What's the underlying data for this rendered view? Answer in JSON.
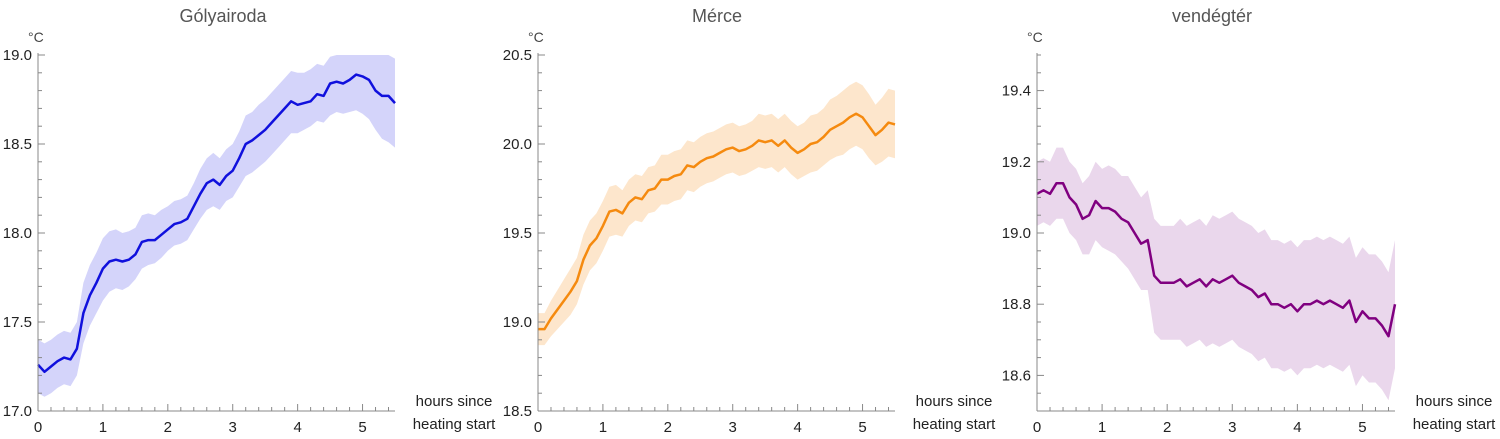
{
  "chart_data": [
    {
      "type": "line",
      "title": "Gólyairoda",
      "ylabel": "°C",
      "xlabel_lines": [
        "hours since",
        "heating start"
      ],
      "xlim": [
        0,
        5.5
      ],
      "ylim": [
        17.0,
        19.0
      ],
      "xticks": [
        0,
        1,
        2,
        3,
        4,
        5
      ],
      "yticks": [
        "17.0",
        "17.5",
        "18.0",
        "18.5",
        "19.0"
      ],
      "color": "#1010dd",
      "band_color": "#d4d4fa",
      "series": [
        {
          "x": [
            0,
            0.1,
            0.2,
            0.3,
            0.4,
            0.5,
            0.6,
            0.7,
            0.8,
            0.9,
            1.0,
            1.1,
            1.2,
            1.3,
            1.4,
            1.5,
            1.6,
            1.7,
            1.8,
            1.9,
            2.0,
            2.1,
            2.2,
            2.3,
            2.4,
            2.5,
            2.6,
            2.7,
            2.8,
            2.9,
            3.0,
            3.1,
            3.2,
            3.3,
            3.4,
            3.5,
            3.6,
            3.7,
            3.8,
            3.9,
            4.0,
            4.1,
            4.2,
            4.3,
            4.4,
            4.5,
            4.6,
            4.7,
            4.8,
            4.9,
            5.0,
            5.1,
            5.2,
            5.3,
            5.4,
            5.5
          ],
          "y": [
            17.26,
            17.22,
            17.25,
            17.28,
            17.3,
            17.29,
            17.35,
            17.55,
            17.65,
            17.72,
            17.8,
            17.84,
            17.85,
            17.84,
            17.85,
            17.88,
            17.95,
            17.96,
            17.96,
            17.99,
            18.02,
            18.05,
            18.06,
            18.08,
            18.15,
            18.22,
            18.28,
            18.3,
            18.27,
            18.32,
            18.35,
            18.42,
            18.5,
            18.52,
            18.55,
            18.58,
            18.62,
            18.66,
            18.7,
            18.74,
            18.72,
            18.73,
            18.74,
            18.78,
            18.77,
            18.84,
            18.85,
            18.84,
            18.86,
            18.89,
            18.88,
            18.86,
            18.8,
            18.77,
            18.77,
            18.73
          ],
          "lower": [
            17.1,
            17.08,
            17.1,
            17.13,
            17.15,
            17.14,
            17.2,
            17.38,
            17.48,
            17.55,
            17.62,
            17.67,
            17.69,
            17.68,
            17.7,
            17.74,
            17.8,
            17.82,
            17.83,
            17.86,
            17.9,
            17.93,
            17.94,
            17.96,
            18.02,
            18.08,
            18.13,
            18.15,
            18.13,
            18.18,
            18.2,
            18.26,
            18.32,
            18.34,
            18.37,
            18.4,
            18.44,
            18.48,
            18.52,
            18.56,
            18.56,
            18.58,
            18.6,
            18.63,
            18.62,
            18.66,
            18.68,
            18.67,
            18.68,
            18.69,
            18.67,
            18.64,
            18.58,
            18.53,
            18.51,
            18.48
          ],
          "upper": [
            17.4,
            17.38,
            17.4,
            17.43,
            17.45,
            17.44,
            17.5,
            17.72,
            17.82,
            17.89,
            17.97,
            18.01,
            18.02,
            18.0,
            18.01,
            18.03,
            18.1,
            18.11,
            18.1,
            18.13,
            18.15,
            18.18,
            18.19,
            18.21,
            18.28,
            18.36,
            18.42,
            18.45,
            18.42,
            18.47,
            18.5,
            18.57,
            18.66,
            18.68,
            18.72,
            18.75,
            18.79,
            18.83,
            18.87,
            18.91,
            18.9,
            18.9,
            18.92,
            18.95,
            18.94,
            18.99,
            19.0,
            19.0,
            19.0,
            19.0,
            19.0,
            19.0,
            19.0,
            19.0,
            19.0,
            18.98
          ]
        }
      ]
    },
    {
      "type": "line",
      "title": "Mérce",
      "ylabel": "°C",
      "xlabel_lines": [
        "hours since",
        "heating start"
      ],
      "xlim": [
        0,
        5.5
      ],
      "ylim": [
        18.5,
        20.5
      ],
      "xticks": [
        0,
        1,
        2,
        3,
        4,
        5
      ],
      "yticks": [
        "18.5",
        "19.0",
        "19.5",
        "20.0",
        "20.5"
      ],
      "color": "#f58a0f",
      "band_color": "#fde6cc",
      "series": [
        {
          "x": [
            0,
            0.1,
            0.2,
            0.3,
            0.4,
            0.5,
            0.6,
            0.7,
            0.8,
            0.9,
            1.0,
            1.1,
            1.2,
            1.3,
            1.4,
            1.5,
            1.6,
            1.7,
            1.8,
            1.9,
            2.0,
            2.1,
            2.2,
            2.3,
            2.4,
            2.5,
            2.6,
            2.7,
            2.8,
            2.9,
            3.0,
            3.1,
            3.2,
            3.3,
            3.4,
            3.5,
            3.6,
            3.7,
            3.8,
            3.9,
            4.0,
            4.1,
            4.2,
            4.3,
            4.4,
            4.5,
            4.6,
            4.7,
            4.8,
            4.9,
            5.0,
            5.1,
            5.2,
            5.3,
            5.4,
            5.5
          ],
          "y": [
            18.96,
            18.96,
            19.02,
            19.07,
            19.12,
            19.17,
            19.23,
            19.35,
            19.43,
            19.47,
            19.54,
            19.62,
            19.63,
            19.61,
            19.67,
            19.7,
            19.69,
            19.74,
            19.75,
            19.8,
            19.8,
            19.82,
            19.83,
            19.88,
            19.87,
            19.9,
            19.92,
            19.93,
            19.95,
            19.97,
            19.98,
            19.96,
            19.97,
            19.99,
            20.02,
            20.01,
            20.02,
            19.99,
            20.02,
            19.98,
            19.95,
            19.97,
            20.0,
            20.01,
            20.04,
            20.08,
            20.1,
            20.12,
            20.15,
            20.17,
            20.15,
            20.1,
            20.05,
            20.08,
            20.12,
            20.11
          ],
          "lower": [
            18.87,
            18.87,
            18.92,
            18.96,
            19.0,
            19.04,
            19.1,
            19.21,
            19.29,
            19.33,
            19.4,
            19.48,
            19.49,
            19.48,
            19.54,
            19.57,
            19.56,
            19.61,
            19.62,
            19.66,
            19.66,
            19.68,
            19.69,
            19.74,
            19.73,
            19.76,
            19.78,
            19.79,
            19.81,
            19.83,
            19.84,
            19.82,
            19.83,
            19.85,
            19.87,
            19.86,
            19.87,
            19.84,
            19.87,
            19.83,
            19.8,
            19.82,
            19.84,
            19.85,
            19.88,
            19.91,
            19.93,
            19.94,
            19.97,
            19.99,
            19.97,
            19.92,
            19.88,
            19.9,
            19.93,
            19.92
          ],
          "upper": [
            19.05,
            19.05,
            19.12,
            19.18,
            19.24,
            19.3,
            19.36,
            19.49,
            19.57,
            19.61,
            19.68,
            19.76,
            19.77,
            19.74,
            19.8,
            19.83,
            19.82,
            19.87,
            19.88,
            19.94,
            19.94,
            19.96,
            19.97,
            20.02,
            20.01,
            20.04,
            20.06,
            20.07,
            20.09,
            20.11,
            20.12,
            20.1,
            20.11,
            20.13,
            20.17,
            20.16,
            20.17,
            20.14,
            20.17,
            20.13,
            20.1,
            20.12,
            20.16,
            20.17,
            20.2,
            20.25,
            20.27,
            20.3,
            20.33,
            20.35,
            20.33,
            20.28,
            20.22,
            20.26,
            20.31,
            20.3
          ]
        }
      ]
    },
    {
      "type": "line",
      "title": "vendégtér",
      "ylabel": "°C",
      "xlabel_lines": [
        "hours since",
        "heating start"
      ],
      "xlim": [
        0,
        5.5
      ],
      "ylim": [
        18.5,
        19.5
      ],
      "xticks": [
        0,
        1,
        2,
        3,
        4,
        5
      ],
      "yticks": [
        "18.6",
        "18.8",
        "19.0",
        "19.2",
        "19.4"
      ],
      "color": "#800080",
      "band_color": "#ead7ec",
      "series": [
        {
          "x": [
            0,
            0.1,
            0.2,
            0.3,
            0.4,
            0.5,
            0.6,
            0.7,
            0.8,
            0.9,
            1.0,
            1.1,
            1.2,
            1.3,
            1.4,
            1.5,
            1.6,
            1.7,
            1.8,
            1.9,
            2.0,
            2.1,
            2.2,
            2.3,
            2.4,
            2.5,
            2.6,
            2.7,
            2.8,
            2.9,
            3.0,
            3.1,
            3.2,
            3.3,
            3.4,
            3.5,
            3.6,
            3.7,
            3.8,
            3.9,
            4.0,
            4.1,
            4.2,
            4.3,
            4.4,
            4.5,
            4.6,
            4.7,
            4.8,
            4.9,
            5.0,
            5.1,
            5.2,
            5.3,
            5.4,
            5.5
          ],
          "y": [
            19.11,
            19.12,
            19.11,
            19.14,
            19.14,
            19.1,
            19.08,
            19.04,
            19.05,
            19.09,
            19.07,
            19.07,
            19.06,
            19.04,
            19.03,
            19.0,
            18.97,
            18.98,
            18.88,
            18.86,
            18.86,
            18.86,
            18.87,
            18.85,
            18.86,
            18.87,
            18.85,
            18.87,
            18.86,
            18.87,
            18.88,
            18.86,
            18.85,
            18.84,
            18.82,
            18.83,
            18.8,
            18.8,
            18.79,
            18.8,
            18.78,
            18.8,
            18.8,
            18.81,
            18.8,
            18.81,
            18.8,
            18.79,
            18.81,
            18.75,
            18.78,
            18.76,
            18.76,
            18.74,
            18.71,
            18.8
          ],
          "lower": [
            19.02,
            19.03,
            19.02,
            19.04,
            19.04,
            19.0,
            18.98,
            18.94,
            18.94,
            18.98,
            18.96,
            18.95,
            18.94,
            18.92,
            18.9,
            18.87,
            18.84,
            18.84,
            18.72,
            18.7,
            18.7,
            18.7,
            18.7,
            18.68,
            18.69,
            18.7,
            18.68,
            18.69,
            18.68,
            18.69,
            18.7,
            18.68,
            18.67,
            18.66,
            18.64,
            18.65,
            18.62,
            18.62,
            18.61,
            18.62,
            18.6,
            18.62,
            18.62,
            18.63,
            18.62,
            18.63,
            18.62,
            18.61,
            18.63,
            18.57,
            18.6,
            18.58,
            18.58,
            18.56,
            18.53,
            18.62
          ],
          "upper": [
            19.2,
            19.21,
            19.2,
            19.24,
            19.24,
            19.2,
            19.18,
            19.14,
            19.16,
            19.2,
            19.18,
            19.19,
            19.18,
            19.16,
            19.16,
            19.13,
            19.1,
            19.12,
            19.04,
            19.02,
            19.02,
            19.02,
            19.04,
            19.02,
            19.03,
            19.04,
            19.02,
            19.05,
            19.04,
            19.05,
            19.06,
            19.04,
            19.03,
            19.02,
            19.0,
            19.01,
            18.98,
            18.98,
            18.97,
            18.98,
            18.96,
            18.98,
            18.98,
            18.99,
            18.98,
            18.99,
            18.98,
            18.97,
            18.99,
            18.93,
            18.96,
            18.94,
            18.94,
            18.92,
            18.89,
            18.98
          ]
        }
      ]
    }
  ]
}
